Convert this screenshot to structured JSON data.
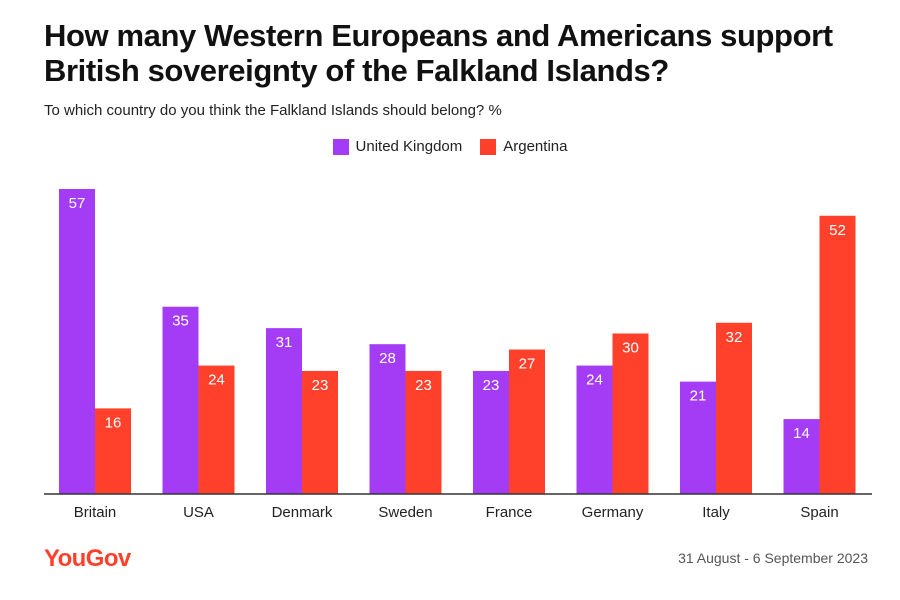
{
  "title": "How many Western Europeans and Americans support British sovereignty of the Falkland Islands?",
  "subtitle": "To which country do you think the Falkland Islands should belong? %",
  "footer": {
    "logo": "YouGov",
    "date": "31 August - 6 September 2023"
  },
  "colors": {
    "uk": "#a43cf5",
    "argentina": "#ff412c",
    "brand": "#ff412c"
  },
  "chart_data": {
    "type": "bar",
    "title": "How many Western Europeans and Americans support British sovereignty of the Falkland Islands?",
    "subtitle": "To which country do you think the Falkland Islands should belong? %",
    "categories": [
      "Britain",
      "USA",
      "Denmark",
      "Sweden",
      "France",
      "Germany",
      "Italy",
      "Spain"
    ],
    "series": [
      {
        "name": "United Kingdom",
        "color": "#a43cf5",
        "values": [
          57,
          35,
          31,
          28,
          23,
          24,
          21,
          14
        ]
      },
      {
        "name": "Argentina",
        "color": "#ff412c",
        "values": [
          16,
          24,
          23,
          23,
          27,
          30,
          32,
          52
        ]
      }
    ],
    "ylim": [
      0,
      57
    ],
    "grid": false,
    "legend": "top-center",
    "data_labels": true
  }
}
